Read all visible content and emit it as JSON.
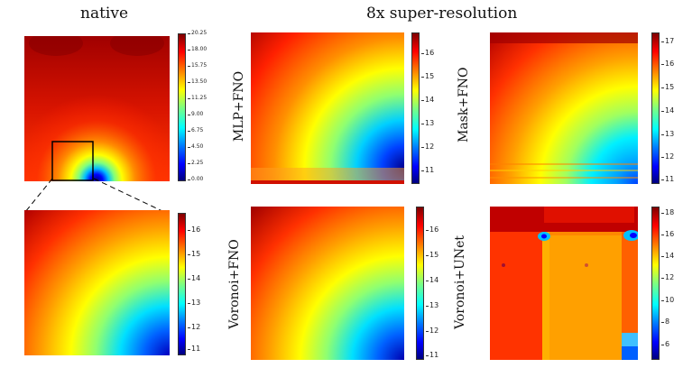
{
  "headers": {
    "native": "native",
    "super_resolution": "8x super-resolution"
  },
  "row_labels": {
    "mlp_fno": "MLP+FNO",
    "mask_fno": "Mask+FNO",
    "voronoi_fno": "Voronoi+FNO",
    "voronoi_unet": "Voronoi+UNet"
  },
  "colorbars": {
    "native_full": [
      "20.25",
      "18.00",
      "15.75",
      "13.50",
      "11.25",
      "9.00",
      "6.75",
      "4.50",
      "2.25",
      "0.00"
    ],
    "native_zoom": [
      "16",
      "15",
      "14",
      "13",
      "12",
      "11"
    ],
    "mlp_fno": [
      "16",
      "15",
      "14",
      "13",
      "12",
      "11"
    ],
    "mask_fno": [
      "17",
      "16",
      "15",
      "14",
      "13",
      "12",
      "11"
    ],
    "voronoi_fno": [
      "16",
      "15",
      "14",
      "13",
      "12",
      "11"
    ],
    "voronoi_unet": [
      "18",
      "16",
      "14",
      "12",
      "10",
      "8",
      "6"
    ]
  }
}
